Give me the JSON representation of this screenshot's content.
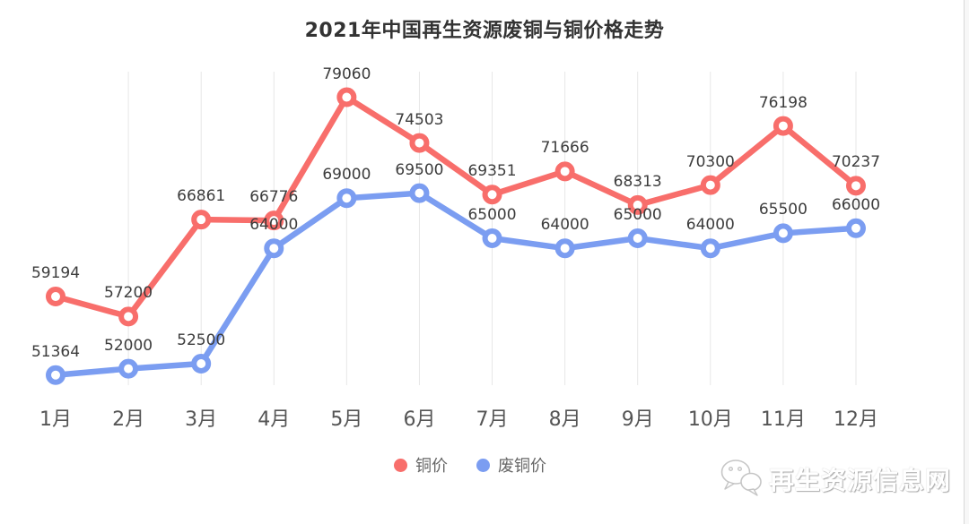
{
  "chart_data": {
    "type": "line",
    "title": "2021年中国再生资源废铜与铜价格走势",
    "categories": [
      "1月",
      "2月",
      "3月",
      "4月",
      "5月",
      "6月",
      "7月",
      "8月",
      "9月",
      "10月",
      "11月",
      "12月"
    ],
    "series": [
      {
        "key": "copper",
        "name": "铜价",
        "color": "#f86e6b",
        "values": [
          59194,
          57200,
          66861,
          66776,
          79060,
          74503,
          69351,
          71666,
          68313,
          70300,
          76198,
          70237
        ]
      },
      {
        "key": "scrap-copper",
        "name": "废铜价",
        "color": "#7b9df1",
        "values": [
          51364,
          52000,
          52500,
          64000,
          69000,
          69500,
          65000,
          64000,
          65000,
          64000,
          65500,
          66000
        ]
      }
    ],
    "xlabel": "",
    "ylabel": "",
    "ylim": [
      50000,
      80000
    ],
    "grid": "vertical-gridlines-only",
    "gridline_color": "#e7e7e7",
    "legend_position": "bottom-center",
    "value_labels": "above-points"
  },
  "watermark": {
    "text": "再生资源信息网",
    "icon": "wechat-chat-bubbles-icon"
  }
}
